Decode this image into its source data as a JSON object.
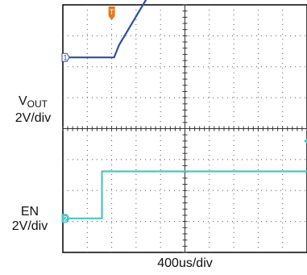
{
  "chart_data": {
    "type": "line",
    "title": "",
    "xlabel": "400us/div",
    "grid": true,
    "divisions": {
      "x": 10,
      "y": 8
    },
    "channels": [
      {
        "name_main": "V",
        "name_sub": "OUT",
        "scale": "2V/div",
        "color": "#2d4fa3",
        "marker": "1",
        "x_div": [
          0,
          2.1,
          2.3,
          4.0,
          10
        ],
        "y_div": [
          2.3,
          2.3,
          2.7,
          4.95,
          4.95
        ]
      },
      {
        "name_main": "EN",
        "name_sub": "",
        "scale": "2V/div",
        "color": "#4fc3c3",
        "marker": "2",
        "x_div": [
          0,
          1.6,
          1.6,
          10
        ],
        "y_div": [
          -2.9,
          -2.9,
          -1.38,
          -1.38
        ]
      }
    ],
    "trigger_marker": "T",
    "trigger_color": "#e87722"
  }
}
